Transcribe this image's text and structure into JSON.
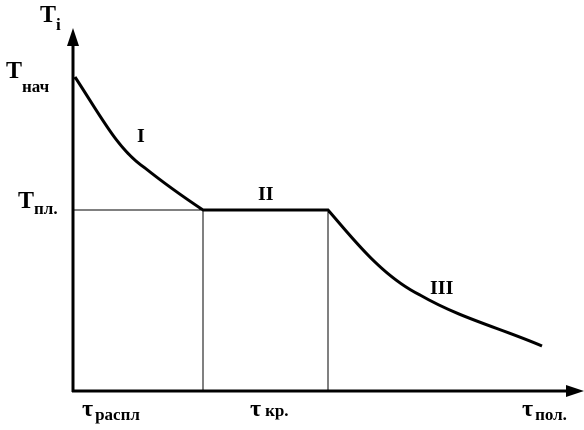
{
  "y_axis": {
    "label": "T",
    "subscript": "i"
  },
  "y_labels": [
    {
      "text": "T",
      "subscript": "нач"
    },
    {
      "text": "T",
      "subscript": "пл."
    }
  ],
  "stages": [
    "I",
    "II",
    "III"
  ],
  "x_labels": [
    {
      "text": "τ",
      "subscript": "распл"
    },
    {
      "text": "τ",
      "subscript": "кр."
    },
    {
      "text": "τ",
      "subscript": "пол."
    }
  ]
}
